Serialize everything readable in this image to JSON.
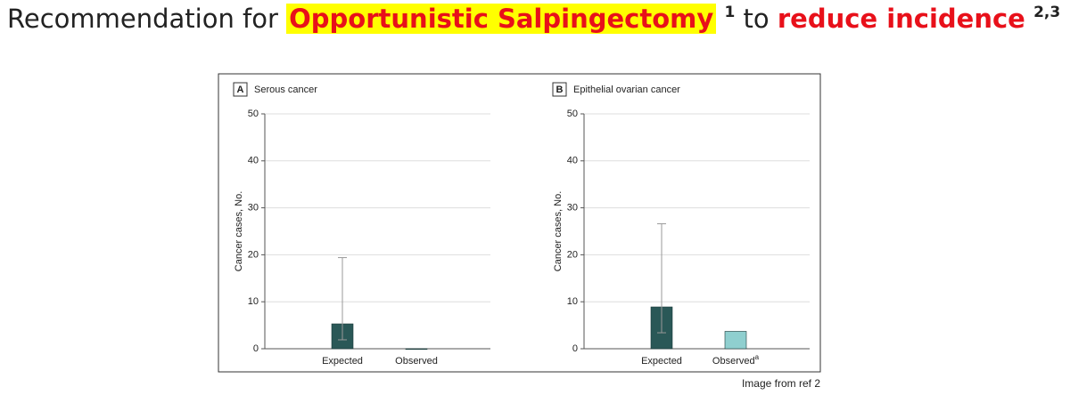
{
  "slide": {
    "title_parts": [
      "Recommendation for",
      "Opportunistic Salpingectomy",
      "1",
      "to",
      "reduce incidence",
      "2,3"
    ],
    "caption": "Image from ref 2"
  },
  "chart_data": [
    {
      "type": "bar",
      "panel": "A",
      "title": "Serous cancer",
      "ylabel": "Cancer cases, No.",
      "categories": [
        "Expected",
        "Observed"
      ],
      "category_notes": [
        null,
        null
      ],
      "values": [
        5.3,
        0
      ],
      "ci_low": [
        1.9,
        null
      ],
      "ci_high": [
        19.4,
        null
      ],
      "colors": [
        "#2a5857",
        "#2a5857"
      ],
      "ylim": [
        0,
        50
      ],
      "yticks": [
        0,
        10,
        20,
        30,
        40,
        50
      ],
      "grid": true
    },
    {
      "type": "bar",
      "panel": "B",
      "title": "Epithelial ovarian cancer",
      "ylabel": "Cancer cases, No.",
      "categories": [
        "Expected",
        "Observed"
      ],
      "category_notes": [
        null,
        "a"
      ],
      "values": [
        8.9,
        3.7
      ],
      "ci_low": [
        3.4,
        null
      ],
      "ci_high": [
        26.6,
        null
      ],
      "colors": [
        "#2a5857",
        "#8fcfcf"
      ],
      "ylim": [
        0,
        50
      ],
      "yticks": [
        0,
        10,
        20,
        30,
        40,
        50
      ],
      "grid": true
    }
  ]
}
